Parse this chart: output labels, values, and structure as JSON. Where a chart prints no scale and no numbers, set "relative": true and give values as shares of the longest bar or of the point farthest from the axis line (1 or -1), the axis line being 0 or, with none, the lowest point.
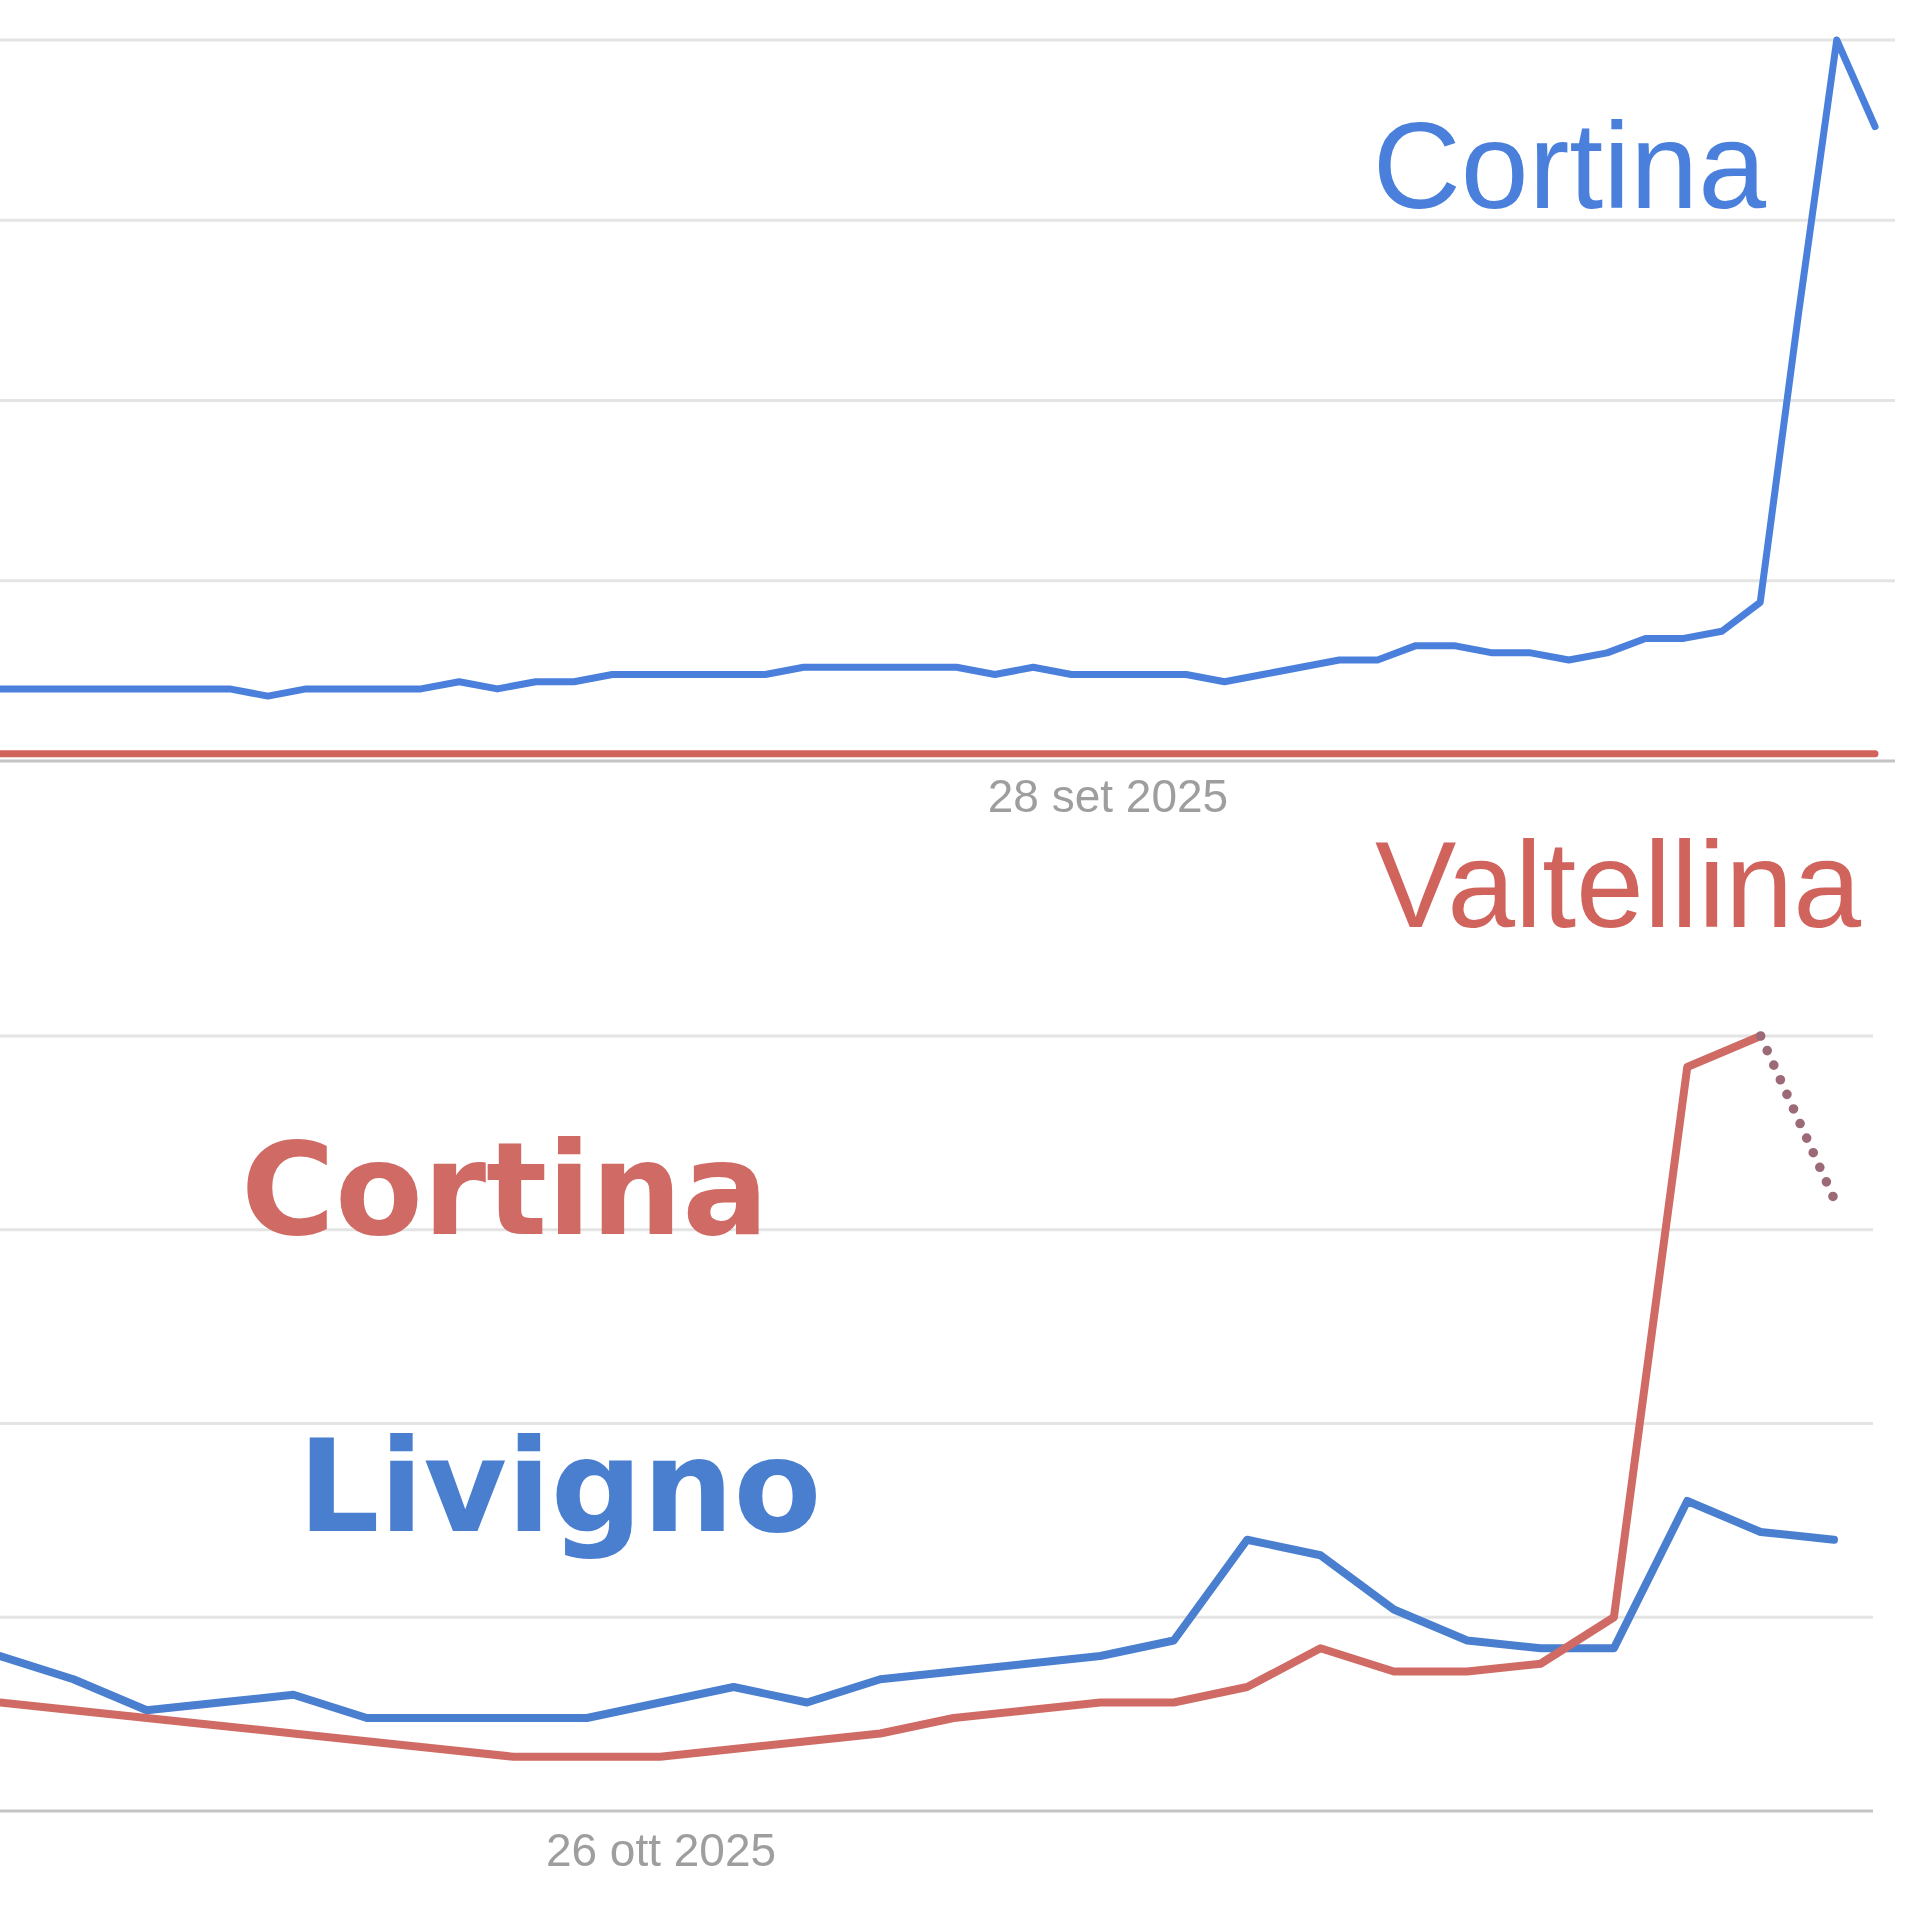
{
  "chart_data": [
    {
      "type": "line",
      "relative": true,
      "grid": true,
      "categories": [
        null,
        null,
        null,
        null,
        null,
        null,
        null,
        null,
        null,
        null,
        null,
        null,
        null,
        null,
        null,
        null,
        null,
        null,
        null,
        null,
        null,
        null,
        null,
        null,
        null,
        null,
        null,
        null,
        null,
        null,
        null,
        null,
        null,
        null,
        null,
        null,
        null,
        null,
        null,
        null,
        null,
        null,
        null,
        null,
        null,
        null,
        null,
        null,
        null,
        null
      ],
      "annotations": [
        "28 set 2025"
      ],
      "series": [
        {
          "name": "Cortina",
          "color": "#4a80dc",
          "values": [
            0.1,
            0.1,
            0.1,
            0.1,
            0.1,
            0.1,
            0.1,
            0.09,
            0.1,
            0.1,
            0.1,
            0.1,
            0.11,
            0.1,
            0.11,
            0.11,
            0.12,
            0.12,
            0.12,
            0.12,
            0.12,
            0.13,
            0.13,
            0.13,
            0.13,
            0.13,
            0.12,
            0.13,
            0.12,
            0.12,
            0.12,
            0.12,
            0.11,
            0.12,
            0.13,
            0.14,
            0.14,
            0.16,
            0.16,
            0.15,
            0.15,
            0.14,
            0.15,
            0.17,
            0.17,
            0.18,
            0.22,
            0.62,
            1,
            0.88
          ]
        },
        {
          "name": "Valtellina",
          "color": "#d0645d",
          "values": [
            0.01,
            0.01,
            0.01,
            0.01,
            0.01,
            0.01,
            0.01,
            0.01,
            0.01,
            0.01,
            0.01,
            0.01,
            0.01,
            0.01,
            0.01,
            0.01,
            0.01,
            0.01,
            0.01,
            0.01,
            0.01,
            0.01,
            0.01,
            0.01,
            0.01,
            0.01,
            0.01,
            0.01,
            0.01,
            0.01,
            0.01,
            0.01,
            0.01,
            0.01,
            0.01,
            0.01,
            0.01,
            0.01,
            0.01,
            0.01,
            0.01,
            0.01,
            0.01,
            0.01,
            0.01,
            0.01,
            0.01,
            0.01,
            0.01,
            0.01
          ]
        }
      ]
    },
    {
      "type": "line",
      "relative": true,
      "grid": true,
      "categories": [
        null,
        null,
        null,
        null,
        null,
        null,
        null,
        null,
        null,
        null,
        null,
        null,
        null,
        null,
        null,
        null,
        null,
        null,
        null,
        null,
        null,
        null,
        null,
        null,
        null,
        null
      ],
      "annotations": [
        "26 ott 2025"
      ],
      "series": [
        {
          "name": "Livigno",
          "color": "#4a7fd0",
          "values": [
            0.2,
            0.17,
            0.13,
            0.14,
            0.15,
            0.12,
            0.12,
            0.12,
            0.12,
            0.14,
            0.16,
            0.14,
            0.17,
            0.18,
            0.19,
            0.2,
            0.22,
            0.35,
            0.33,
            0.26,
            0.22,
            0.21,
            0.21,
            0.4,
            0.36,
            0.35
          ]
        },
        {
          "name": "Cortina",
          "color": "#cf6b64",
          "values": [
            0.14,
            0.13,
            0.12,
            0.11,
            0.1,
            0.09,
            0.08,
            0.07,
            0.07,
            0.07,
            0.08,
            0.09,
            0.1,
            0.12,
            0.13,
            0.14,
            0.14,
            0.16,
            0.21,
            0.18,
            0.18,
            0.19,
            0.25,
            0.96,
            1,
            null
          ]
        },
        {
          "color": "#9b6a76",
          "line_style": "dotted",
          "values": [
            null,
            null,
            null,
            null,
            null,
            null,
            null,
            null,
            null,
            null,
            null,
            null,
            null,
            null,
            null,
            null,
            null,
            null,
            null,
            null,
            null,
            null,
            null,
            null,
            1,
            0.79
          ]
        }
      ]
    }
  ]
}
